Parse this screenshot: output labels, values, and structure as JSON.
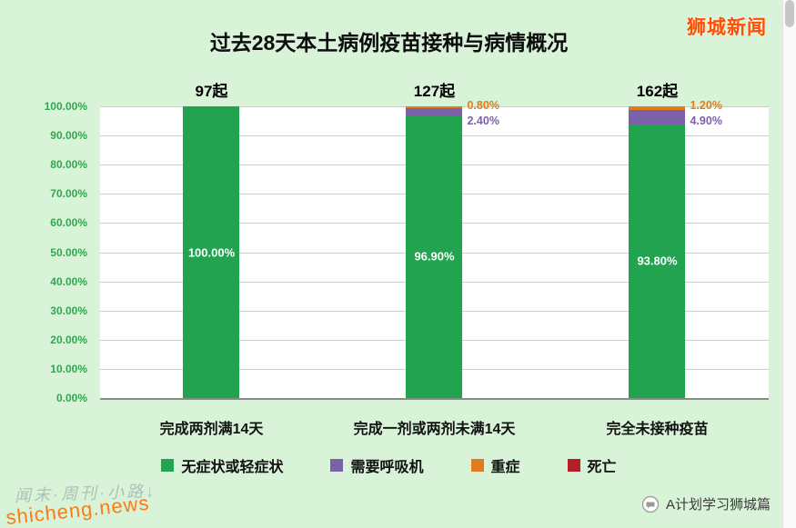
{
  "header": {
    "brand": "狮城新闻"
  },
  "chart_data": {
    "type": "bar",
    "stacked": true,
    "title": "过去28天本土病例疫苗接种与病情概况",
    "categories": [
      "完成两剂满14天",
      "完成一剂或两剂未满14天",
      "完全未接种疫苗"
    ],
    "bar_totals": [
      "97起",
      "127起",
      "162起"
    ],
    "series": [
      {
        "name": "无症状或轻症状",
        "color": "#21a350",
        "values": [
          100.0,
          96.9,
          93.8
        ]
      },
      {
        "name": "需要呼吸机",
        "color": "#7b62a8",
        "values": [
          0.0,
          2.4,
          4.9
        ]
      },
      {
        "name": "重症",
        "color": "#e07c1e",
        "values": [
          0.0,
          0.8,
          1.2
        ]
      },
      {
        "name": "死亡",
        "color": "#b42025",
        "values": [
          0.0,
          0.0,
          0.0
        ]
      }
    ],
    "inner_labels": [
      "100.00%",
      "96.90%",
      "93.80%"
    ],
    "callout_labels": [
      [],
      [
        {
          "text": "0.80%",
          "color": "#e07c1e"
        },
        {
          "text": "2.40%",
          "color": "#7b62a8"
        }
      ],
      [
        {
          "text": "1.20%",
          "color": "#e07c1e"
        },
        {
          "text": "4.90%",
          "color": "#7b62a8"
        }
      ]
    ],
    "y_ticks": [
      "100.00%",
      "90.00%",
      "80.00%",
      "70.00%",
      "60.00%",
      "50.00%",
      "40.00%",
      "30.00%",
      "20.00%",
      "10.00%",
      "0.00%"
    ],
    "ylim": [
      0,
      100
    ],
    "grid": true,
    "legend_position": "bottom",
    "axis_label_color": "#2fa84f"
  },
  "footer": {
    "scribble": "闻末·周刊·小路↓",
    "watermark": "shicheng.news",
    "credit": "A计划学习狮城篇"
  },
  "colors": {
    "background": "#d8f3d8",
    "plot_background": "#ffffff",
    "gridline": "#cdcdcd",
    "brand": "#ff4e00",
    "watermark": "#ff7a14"
  }
}
